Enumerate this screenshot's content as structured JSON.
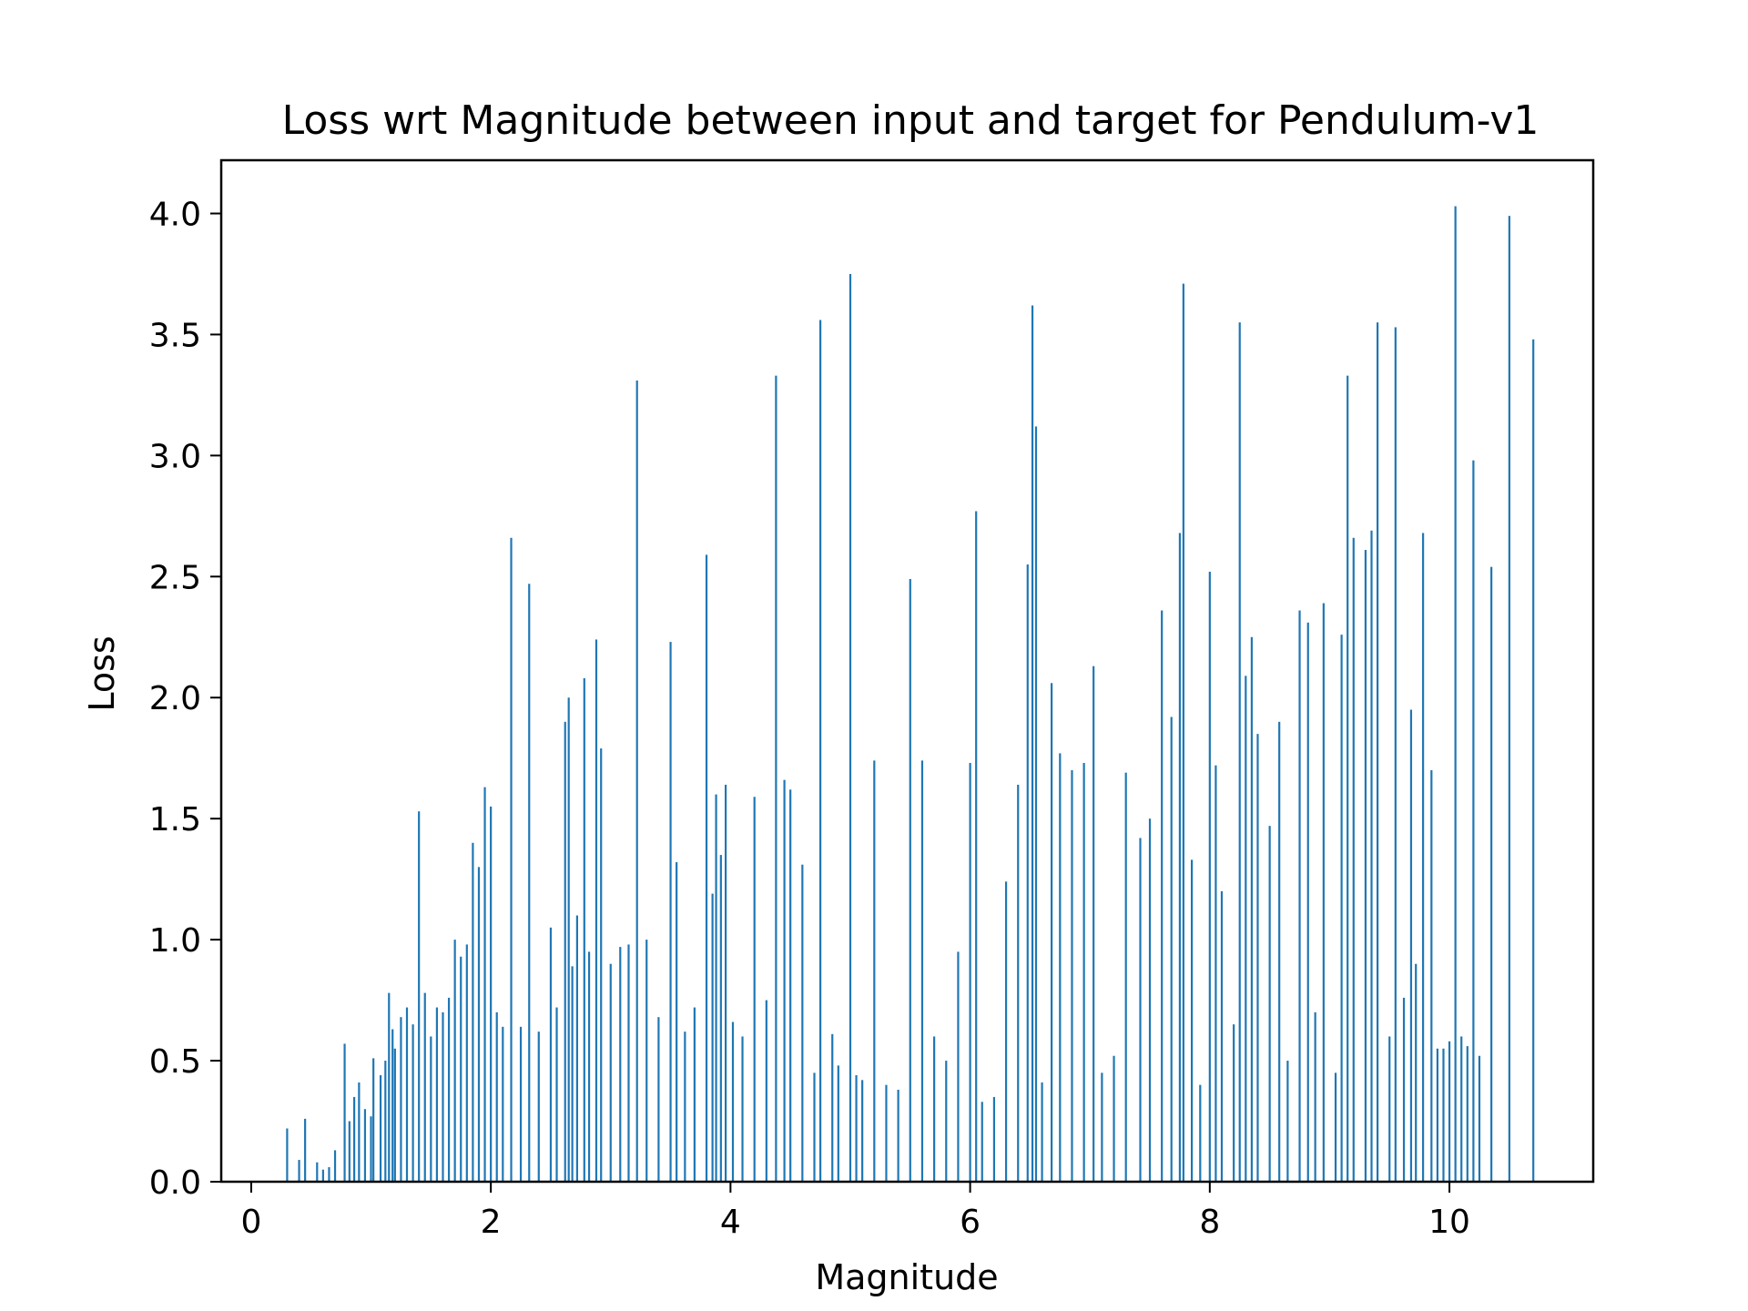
{
  "chart_data": {
    "type": "bar",
    "title": "Loss wrt Magnitude between input and target for Pendulum-v1",
    "xlabel": "Magnitude",
    "ylabel": "Loss",
    "xlim": [
      -0.25,
      11.2
    ],
    "ylim": [
      0,
      4.22
    ],
    "xticks": [
      0,
      2,
      4,
      6,
      8,
      10
    ],
    "xtick_labels": [
      "0",
      "2",
      "4",
      "6",
      "8",
      "10"
    ],
    "yticks": [
      0.0,
      0.5,
      1.0,
      1.5,
      2.0,
      2.5,
      3.0,
      3.5,
      4.0
    ],
    "ytick_labels": [
      "0.0",
      "0.5",
      "1.0",
      "1.5",
      "2.0",
      "2.5",
      "3.0",
      "3.5",
      "4.0"
    ],
    "bar_color": "#1f77b4",
    "grid": false,
    "legend": "none",
    "series": [
      {
        "x": [
          0.3,
          0.4,
          0.45,
          0.55,
          0.6,
          0.65,
          0.7,
          0.78,
          0.82,
          0.86,
          0.9,
          0.95,
          1.0,
          1.02,
          1.08,
          1.12,
          1.15,
          1.18,
          1.2,
          1.25,
          1.3,
          1.35,
          1.4,
          1.45,
          1.5,
          1.55,
          1.6,
          1.65,
          1.7,
          1.75,
          1.8,
          1.85,
          1.9,
          1.95,
          2.0,
          2.05,
          2.1,
          2.17,
          2.25,
          2.32,
          2.4,
          2.5,
          2.55,
          2.62,
          2.65,
          2.68,
          2.72,
          2.78,
          2.82,
          2.88,
          2.92,
          3.0,
          3.08,
          3.15,
          3.22,
          3.3,
          3.4,
          3.5,
          3.55,
          3.62,
          3.7,
          3.8,
          3.85,
          3.88,
          3.92,
          3.96,
          4.02,
          4.1,
          4.2,
          4.3,
          4.38,
          4.45,
          4.5,
          4.6,
          4.7,
          4.75,
          4.85,
          4.9,
          5.0,
          5.05,
          5.1,
          5.2,
          5.3,
          5.4,
          5.5,
          5.6,
          5.7,
          5.8,
          5.9,
          6.0,
          6.05,
          6.1,
          6.2,
          6.3,
          6.4,
          6.48,
          6.52,
          6.55,
          6.6,
          6.68,
          6.75,
          6.85,
          6.95,
          7.03,
          7.1,
          7.2,
          7.3,
          7.42,
          7.5,
          7.6,
          7.68,
          7.75,
          7.78,
          7.85,
          7.92,
          8.0,
          8.05,
          8.1,
          8.2,
          8.25,
          8.3,
          8.35,
          8.4,
          8.5,
          8.58,
          8.65,
          8.75,
          8.82,
          8.88,
          8.95,
          9.05,
          9.1,
          9.15,
          9.2,
          9.3,
          9.35,
          9.4,
          9.5,
          9.55,
          9.62,
          9.68,
          9.72,
          9.78,
          9.85,
          9.9,
          9.95,
          10.0,
          10.05,
          10.1,
          10.15,
          10.2,
          10.25,
          10.35,
          10.5,
          10.7
        ],
        "values": [
          0.22,
          0.09,
          0.26,
          0.08,
          0.05,
          0.06,
          0.13,
          0.57,
          0.25,
          0.35,
          0.41,
          0.3,
          0.27,
          0.51,
          0.44,
          0.5,
          0.78,
          0.63,
          0.55,
          0.68,
          0.72,
          0.65,
          1.53,
          0.78,
          0.6,
          0.72,
          0.7,
          0.76,
          1.0,
          0.93,
          0.98,
          1.4,
          1.3,
          1.63,
          1.55,
          0.7,
          0.64,
          2.66,
          0.64,
          2.47,
          0.62,
          1.05,
          0.72,
          1.9,
          2.0,
          0.89,
          1.1,
          2.08,
          0.95,
          2.24,
          1.79,
          0.9,
          0.97,
          0.98,
          3.31,
          1.0,
          0.68,
          2.23,
          1.32,
          0.62,
          0.72,
          2.59,
          1.19,
          1.6,
          1.35,
          1.64,
          0.66,
          0.6,
          1.59,
          0.75,
          3.33,
          1.66,
          1.62,
          1.31,
          0.45,
          3.56,
          0.61,
          0.48,
          3.75,
          0.44,
          0.42,
          1.74,
          0.4,
          0.38,
          2.49,
          1.74,
          0.6,
          0.5,
          0.95,
          1.73,
          2.77,
          0.33,
          0.35,
          1.24,
          1.64,
          2.55,
          3.62,
          3.12,
          0.41,
          2.06,
          1.77,
          1.7,
          1.73,
          2.13,
          0.45,
          0.52,
          1.69,
          1.42,
          1.5,
          2.36,
          1.92,
          2.68,
          3.71,
          1.33,
          0.4,
          2.52,
          1.72,
          1.2,
          0.65,
          3.55,
          2.09,
          2.25,
          1.85,
          1.47,
          1.9,
          0.5,
          2.36,
          2.31,
          0.7,
          2.39,
          0.45,
          2.26,
          3.33,
          2.66,
          2.61,
          2.69,
          3.55,
          0.6,
          3.53,
          0.76,
          1.95,
          0.9,
          2.68,
          1.7,
          0.55,
          0.55,
          0.58,
          4.03,
          0.6,
          0.56,
          2.98,
          0.52,
          2.54,
          3.99,
          3.48
        ]
      }
    ]
  }
}
